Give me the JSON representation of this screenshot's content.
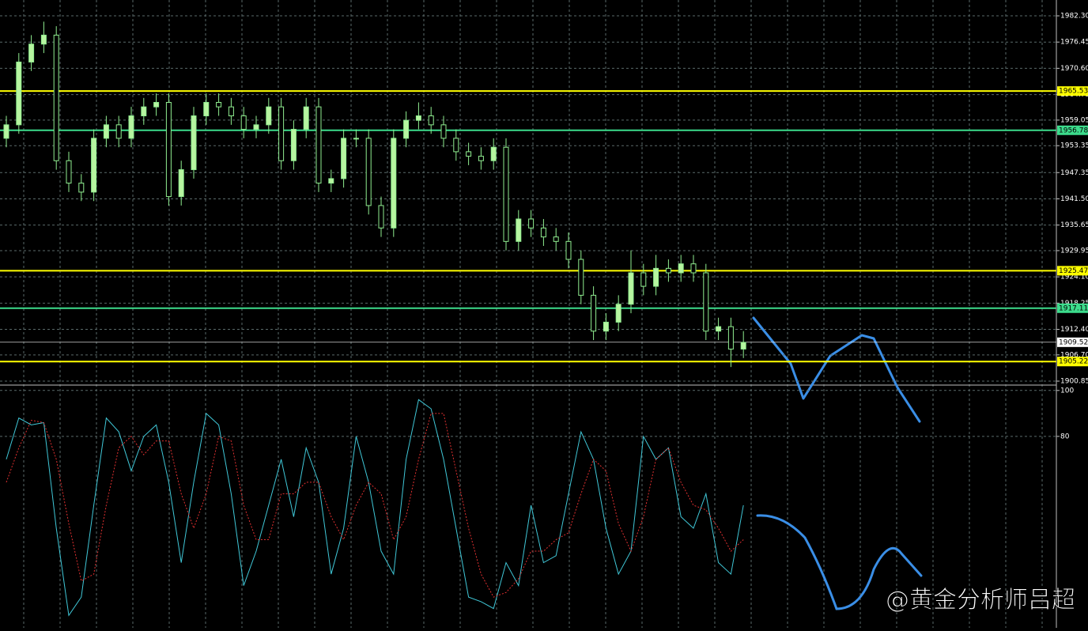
{
  "chart_data": [
    {
      "type": "candlestick",
      "ylim": [
        1899.97,
        1985.83
      ],
      "yticks": [
        {
          "value": 1982.3,
          "label": "1982.30"
        },
        1976.45,
        {
          "value": 1970.6,
          "label": "1970.60"
        },
        1964.75,
        1959.05,
        1953.35,
        1947.35,
        {
          "value": 1941.5,
          "label": "1941.50"
        },
        1935.65,
        1929.95,
        {
          "value": 1924.1,
          "label": "1924.10"
        },
        1918.25,
        {
          "value": 1912.4,
          "label": "1912.40"
        },
        {
          "value": 1906.7,
          "label": "1906.70"
        },
        1900.85
      ],
      "grid": true,
      "colors": {
        "up": "#b7f5a0",
        "down": "#000000",
        "outline": "#90ee90"
      },
      "open": [
        1955,
        1958,
        1972,
        1976,
        1978,
        1950,
        1945,
        1943,
        1955,
        1958,
        1955,
        1960,
        1962,
        1963,
        1942,
        1948,
        1960,
        1963,
        1962,
        1960,
        1957,
        1958,
        1962,
        1950,
        1957,
        1962,
        1945,
        1946,
        1955,
        1955,
        1940,
        1935,
        1955,
        1959,
        1960,
        1958,
        1955,
        1952,
        1951,
        1950,
        1953,
        1932,
        1937,
        1935,
        1933,
        1932,
        1928,
        1920,
        1912,
        1914,
        1918,
        1925,
        1922,
        1926,
        1925,
        1927,
        1925,
        1912,
        1913,
        1908
      ],
      "high": [
        1960,
        1974,
        1978,
        1981,
        1980,
        1952,
        1947,
        1957,
        1960,
        1960,
        1962,
        1964,
        1965,
        1965,
        1950,
        1962,
        1965,
        1965,
        1964,
        1962,
        1960,
        1964,
        1964,
        1959,
        1964,
        1964,
        1948,
        1957,
        1957,
        1957,
        1942,
        1957,
        1961,
        1963,
        1962,
        1960,
        1957,
        1954,
        1953,
        1955,
        1955,
        1939,
        1939,
        1937,
        1935,
        1934,
        1930,
        1922,
        1916,
        1920,
        1930,
        1927,
        1929,
        1928,
        1929,
        1929,
        1927,
        1915,
        1915,
        1912
      ],
      "low": [
        1953,
        1956,
        1970,
        1974,
        1948,
        1943,
        1941,
        1941,
        1953,
        1953,
        1953,
        1958,
        1960,
        1940,
        1940,
        1946,
        1958,
        1960,
        1958,
        1955,
        1955,
        1956,
        1948,
        1948,
        1955,
        1943,
        1943,
        1944,
        1953,
        1938,
        1933,
        1933,
        1953,
        1957,
        1956,
        1953,
        1950,
        1949,
        1948,
        1948,
        1930,
        1930,
        1933,
        1931,
        1930,
        1926,
        1918,
        1910,
        1910,
        1912,
        1916,
        1920,
        1920,
        1923,
        1923,
        1923,
        1910,
        1910,
        1904,
        1906
      ],
      "close": [
        1958,
        1972,
        1976,
        1978,
        1950,
        1945,
        1943,
        1955,
        1958,
        1955,
        1960,
        1962,
        1963,
        1942,
        1948,
        1960,
        1963,
        1962,
        1960,
        1957,
        1958,
        1962,
        1950,
        1957,
        1962,
        1945,
        1946,
        1955,
        1955,
        1940,
        1935,
        1955,
        1959,
        1960,
        1958,
        1955,
        1952,
        1951,
        1950,
        1953,
        1932,
        1937,
        1935,
        1933,
        1932,
        1928,
        1920,
        1912,
        1914,
        1918,
        1925,
        1922,
        1926,
        1925,
        1927,
        1925,
        1912,
        1913,
        1908,
        1909.5
      ],
      "levels": [
        {
          "value": 1965.53,
          "color": "#ffff00"
        },
        {
          "value": 1956.78,
          "color": "#3cdc8c"
        },
        {
          "value": 1925.47,
          "color": "#ffff00"
        },
        {
          "value": 1917.11,
          "color": "#3cdc8c"
        },
        {
          "value": 1909.52,
          "color": "#ffffff"
        },
        {
          "value": 1905.22,
          "color": "#ffff00"
        }
      ]
    },
    {
      "type": "line",
      "ylim": [
        -3.4,
        102
      ],
      "yticks": [
        100,
        80
      ],
      "grid": true,
      "series": [
        {
          "color": "#40c8d8",
          "values": [
            70,
            88,
            85,
            86,
            40,
            2,
            10,
            50,
            88,
            82,
            65,
            80,
            85,
            60,
            25,
            60,
            90,
            85,
            55,
            15,
            30,
            50,
            70,
            45,
            75,
            60,
            20,
            40,
            80,
            60,
            30,
            20,
            70,
            96,
            92,
            70,
            40,
            10,
            8,
            5,
            25,
            15,
            50,
            25,
            28,
            55,
            82,
            70,
            40,
            20,
            30,
            80,
            70,
            75,
            45,
            40,
            55,
            25,
            20,
            50
          ]
        },
        {
          "color": "#e03030",
          "dashed": true,
          "values": [
            60,
            75,
            87,
            86,
            70,
            42,
            17,
            20,
            50,
            75,
            80,
            72,
            78,
            78,
            55,
            40,
            55,
            80,
            78,
            50,
            35,
            35,
            55,
            55,
            60,
            60,
            45,
            35,
            50,
            60,
            55,
            35,
            45,
            70,
            90,
            90,
            65,
            40,
            20,
            10,
            12,
            18,
            30,
            30,
            35,
            38,
            55,
            70,
            65,
            42,
            30,
            45,
            70,
            75,
            60,
            50,
            48,
            40,
            30,
            35
          ]
        }
      ]
    }
  ],
  "watermark": "@黄金分析师吕超"
}
